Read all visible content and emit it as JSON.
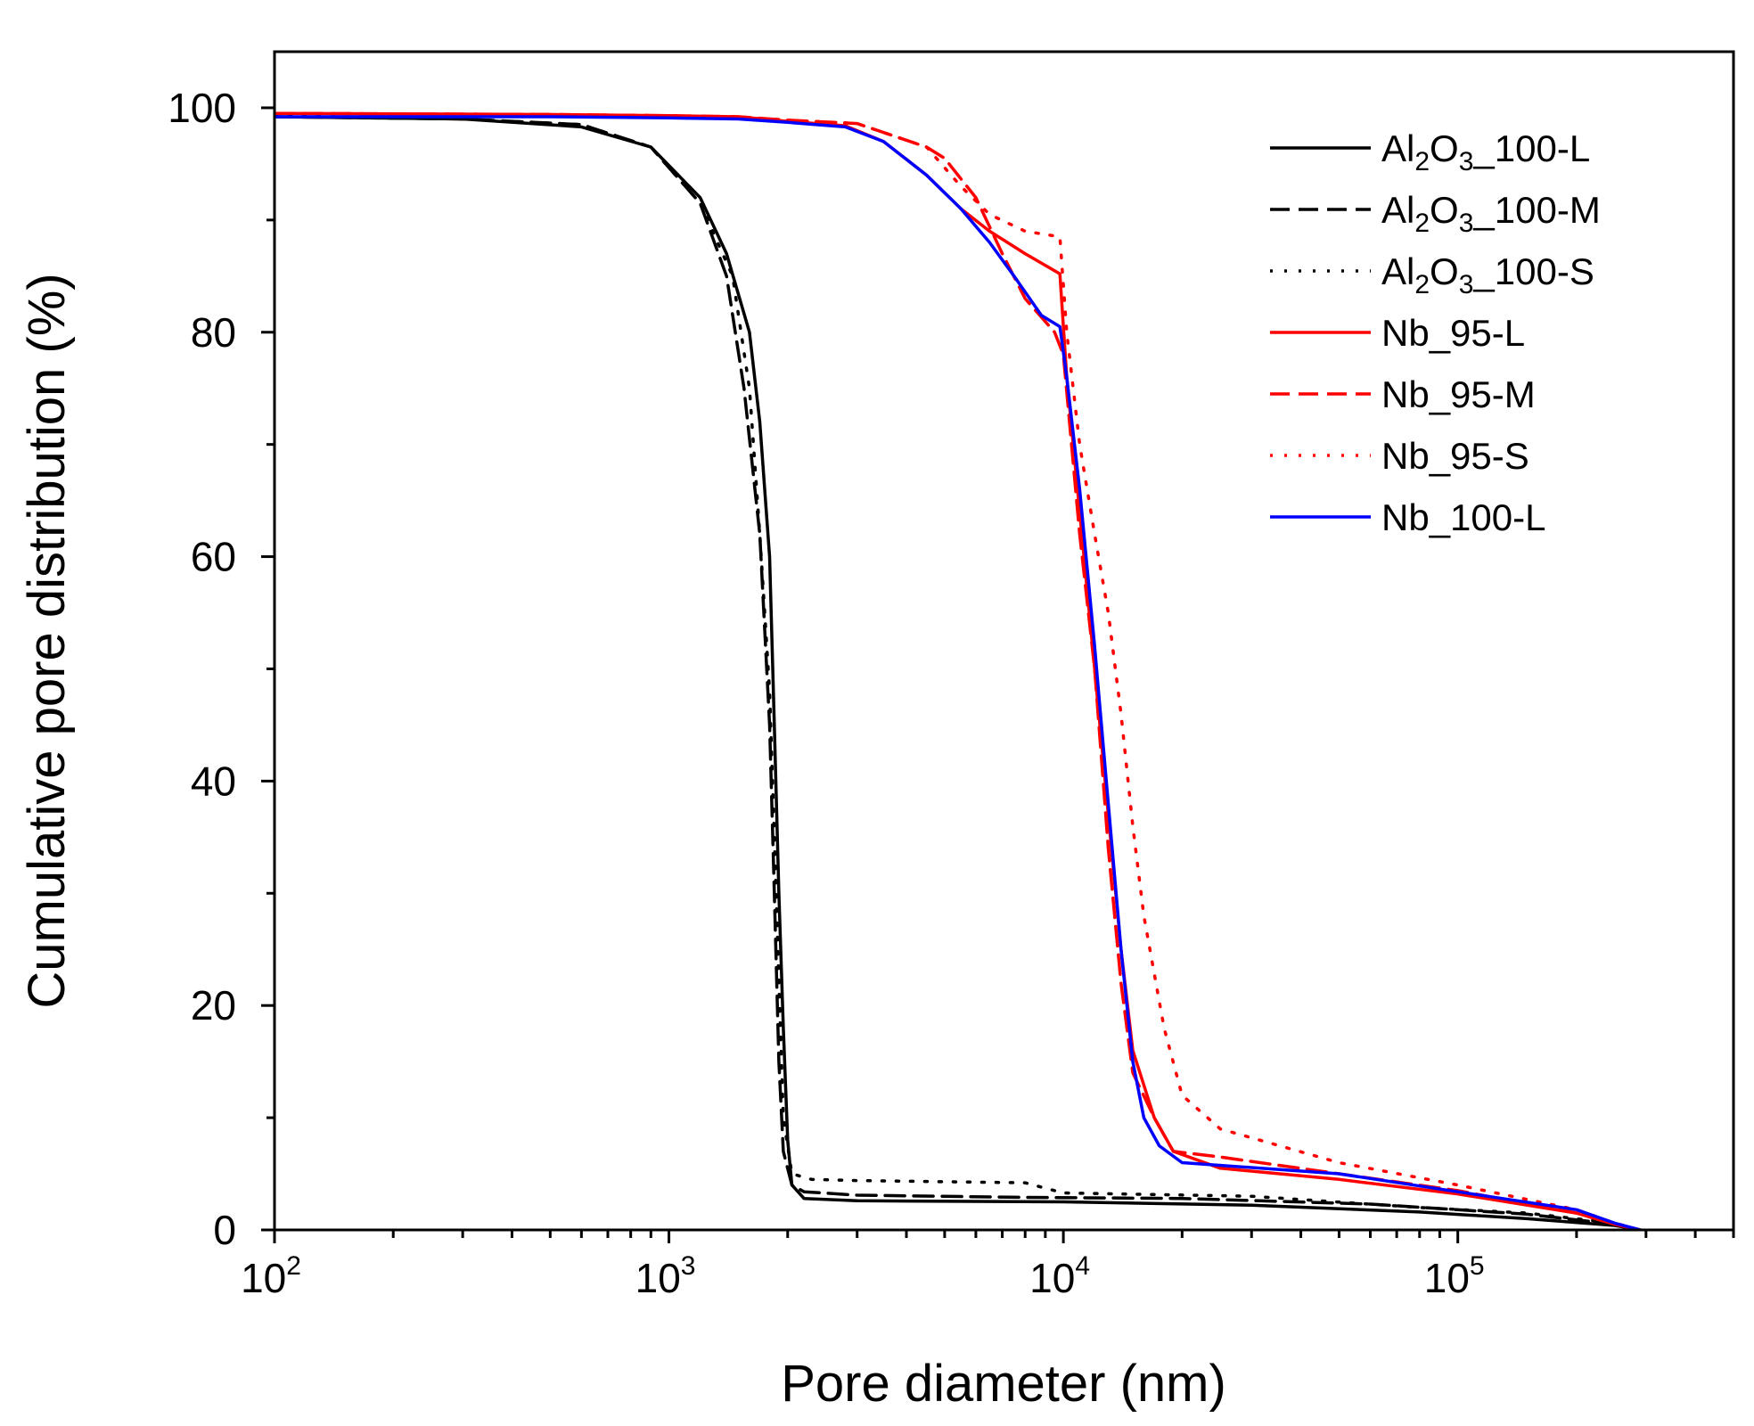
{
  "chart_data": {
    "type": "line",
    "title": "",
    "xlabel": "Pore diameter (nm)",
    "ylabel": "Cumulative pore distribution (%)",
    "xscale": "log",
    "xlim": [
      100,
      500000
    ],
    "ylim": [
      0,
      105
    ],
    "x_ticks": [
      {
        "value": 100,
        "base": "10",
        "exp": "2"
      },
      {
        "value": 1000,
        "base": "10",
        "exp": "3"
      },
      {
        "value": 10000,
        "base": "10",
        "exp": "4"
      },
      {
        "value": 100000,
        "base": "10",
        "exp": "5"
      }
    ],
    "y_ticks": [
      {
        "value": 0,
        "label": "0"
      },
      {
        "value": 20,
        "label": "20"
      },
      {
        "value": 40,
        "label": "40"
      },
      {
        "value": 60,
        "label": "60"
      },
      {
        "value": 80,
        "label": "80"
      },
      {
        "value": 100,
        "label": "100"
      }
    ],
    "legend_position": "top-right",
    "series": [
      {
        "id": "al2o3-100-l",
        "legend": {
          "pre": "Al",
          "sub1": "2",
          "mid": "O",
          "sub2": "3",
          "post": "_100-L"
        },
        "color": "#000000",
        "style": "solid",
        "points": [
          [
            100,
            99.2
          ],
          [
            300,
            99.0
          ],
          [
            600,
            98.3
          ],
          [
            900,
            96.5
          ],
          [
            1200,
            92.0
          ],
          [
            1400,
            87.0
          ],
          [
            1600,
            80.0
          ],
          [
            1700,
            72.0
          ],
          [
            1800,
            60.0
          ],
          [
            1850,
            45.0
          ],
          [
            1900,
            30.0
          ],
          [
            1950,
            18.0
          ],
          [
            2000,
            8.0
          ],
          [
            2050,
            4.0
          ],
          [
            2200,
            2.8
          ],
          [
            3000,
            2.6
          ],
          [
            10000,
            2.5
          ],
          [
            30000,
            2.2
          ],
          [
            80000,
            1.6
          ],
          [
            150000,
            1.0
          ],
          [
            250000,
            0.4
          ],
          [
            290000,
            0.0
          ]
        ]
      },
      {
        "id": "al2o3-100-m",
        "legend": {
          "pre": "Al",
          "sub1": "2",
          "mid": "O",
          "sub2": "3",
          "post": "_100-M"
        },
        "color": "#000000",
        "style": "dashed",
        "points": [
          [
            100,
            99.2
          ],
          [
            300,
            99.0
          ],
          [
            600,
            98.5
          ],
          [
            900,
            96.5
          ],
          [
            1200,
            91.5
          ],
          [
            1400,
            85.0
          ],
          [
            1550,
            75.0
          ],
          [
            1700,
            62.0
          ],
          [
            1800,
            45.0
          ],
          [
            1850,
            30.0
          ],
          [
            1900,
            15.0
          ],
          [
            1950,
            7.0
          ],
          [
            2050,
            4.0
          ],
          [
            2200,
            3.4
          ],
          [
            3000,
            3.1
          ],
          [
            8000,
            2.9
          ],
          [
            20000,
            2.8
          ],
          [
            60000,
            2.3
          ],
          [
            150000,
            1.4
          ],
          [
            250000,
            0.5
          ],
          [
            290000,
            0.0
          ]
        ]
      },
      {
        "id": "al2o3-100-s",
        "legend": {
          "pre": "Al",
          "sub1": "2",
          "mid": "O",
          "sub2": "3",
          "post": "_100-S"
        },
        "color": "#000000",
        "style": "dotted",
        "points": [
          [
            100,
            99.3
          ],
          [
            300,
            99.0
          ],
          [
            600,
            98.5
          ],
          [
            900,
            96.5
          ],
          [
            1200,
            91.5
          ],
          [
            1450,
            85.0
          ],
          [
            1600,
            75.0
          ],
          [
            1700,
            62.0
          ],
          [
            1800,
            48.0
          ],
          [
            1850,
            35.0
          ],
          [
            1900,
            22.0
          ],
          [
            1950,
            10.0
          ],
          [
            2050,
            5.0
          ],
          [
            2300,
            4.5
          ],
          [
            3000,
            4.4
          ],
          [
            8000,
            4.2
          ],
          [
            10000,
            3.3
          ],
          [
            30000,
            3.0
          ],
          [
            80000,
            2.0
          ],
          [
            150000,
            1.5
          ],
          [
            250000,
            0.6
          ],
          [
            290000,
            0.0
          ]
        ]
      },
      {
        "id": "nb-95-l",
        "legend": {
          "pre": "Nb_95-L"
        },
        "color": "#ff0000",
        "style": "solid",
        "points": [
          [
            100,
            99.5
          ],
          [
            500,
            99.4
          ],
          [
            1000,
            99.3
          ],
          [
            1500,
            99.2
          ],
          [
            2000,
            98.8
          ],
          [
            2800,
            98.4
          ],
          [
            3500,
            97.0
          ],
          [
            4500,
            94.0
          ],
          [
            5500,
            91.0
          ],
          [
            6500,
            89.0
          ],
          [
            8000,
            87.0
          ],
          [
            9800,
            85.2
          ],
          [
            10200,
            76.0
          ],
          [
            11000,
            64.0
          ],
          [
            12000,
            50.0
          ],
          [
            13000,
            37.0
          ],
          [
            14000,
            25.0
          ],
          [
            15000,
            16.0
          ],
          [
            17000,
            10.0
          ],
          [
            19000,
            7.0
          ],
          [
            25000,
            5.5
          ],
          [
            50000,
            4.5
          ],
          [
            100000,
            3.2
          ],
          [
            200000,
            1.5
          ],
          [
            250000,
            0.5
          ],
          [
            290000,
            0.0
          ]
        ]
      },
      {
        "id": "nb-95-m",
        "legend": {
          "pre": "Nb_95-M"
        },
        "color": "#ff0000",
        "style": "dashed",
        "points": [
          [
            100,
            99.5
          ],
          [
            500,
            99.4
          ],
          [
            1000,
            99.3
          ],
          [
            1500,
            99.2
          ],
          [
            2000,
            98.9
          ],
          [
            3000,
            98.6
          ],
          [
            4500,
            96.5
          ],
          [
            5000,
            95.5
          ],
          [
            6000,
            92.0
          ],
          [
            7000,
            87.0
          ],
          [
            8000,
            83.0
          ],
          [
            9500,
            80.0
          ],
          [
            10000,
            78.0
          ],
          [
            11000,
            62.0
          ],
          [
            12000,
            50.0
          ],
          [
            13000,
            34.0
          ],
          [
            14000,
            22.0
          ],
          [
            15000,
            14.0
          ],
          [
            17000,
            10.0
          ],
          [
            19000,
            7.0
          ],
          [
            25000,
            6.5
          ],
          [
            50000,
            5.0
          ],
          [
            100000,
            3.5
          ],
          [
            200000,
            1.5
          ],
          [
            250000,
            0.5
          ],
          [
            290000,
            0.0
          ]
        ]
      },
      {
        "id": "nb-95-s",
        "legend": {
          "pre": "Nb_95-S"
        },
        "color": "#ff0000",
        "style": "dotted",
        "points": [
          [
            100,
            99.5
          ],
          [
            500,
            99.4
          ],
          [
            1000,
            99.3
          ],
          [
            1500,
            99.2
          ],
          [
            2000,
            98.9
          ],
          [
            3000,
            98.6
          ],
          [
            4500,
            96.5
          ],
          [
            5500,
            93.0
          ],
          [
            6500,
            90.5
          ],
          [
            8000,
            89.0
          ],
          [
            9800,
            88.5
          ],
          [
            10200,
            80.0
          ],
          [
            11000,
            70.0
          ],
          [
            12000,
            62.0
          ],
          [
            13000,
            55.0
          ],
          [
            14000,
            46.0
          ],
          [
            15000,
            36.0
          ],
          [
            16000,
            28.0
          ],
          [
            18000,
            18.0
          ],
          [
            20000,
            12.0
          ],
          [
            25000,
            9.0
          ],
          [
            50000,
            6.0
          ],
          [
            100000,
            4.0
          ],
          [
            200000,
            1.8
          ],
          [
            250000,
            0.6
          ],
          [
            290000,
            0.0
          ]
        ]
      },
      {
        "id": "nb-100-l",
        "legend": {
          "pre": "Nb_100-L"
        },
        "color": "#0000ff",
        "style": "solid",
        "points": [
          [
            100,
            99.2
          ],
          [
            500,
            99.2
          ],
          [
            1000,
            99.1
          ],
          [
            1500,
            99.0
          ],
          [
            2000,
            98.7
          ],
          [
            2800,
            98.3
          ],
          [
            3500,
            97.0
          ],
          [
            4500,
            94.0
          ],
          [
            5500,
            91.0
          ],
          [
            6500,
            88.0
          ],
          [
            7500,
            85.0
          ],
          [
            8800,
            81.5
          ],
          [
            9800,
            80.5
          ],
          [
            10200,
            76.0
          ],
          [
            11000,
            66.0
          ],
          [
            12000,
            52.0
          ],
          [
            13000,
            38.0
          ],
          [
            14000,
            25.0
          ],
          [
            15000,
            15.0
          ],
          [
            16000,
            10.0
          ],
          [
            17500,
            7.5
          ],
          [
            20000,
            6.0
          ],
          [
            50000,
            5.0
          ],
          [
            100000,
            3.4
          ],
          [
            200000,
            1.8
          ],
          [
            250000,
            0.6
          ],
          [
            290000,
            0.0
          ]
        ]
      }
    ]
  }
}
